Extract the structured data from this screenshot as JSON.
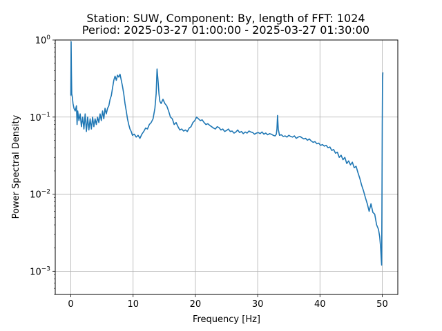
{
  "chart_data": {
    "type": "line",
    "title": "Station: SUW, Component: By, length of FFT: 1024",
    "subtitle": "Period: 2025-03-27 01:00:00 - 2025-03-27 01:30:00",
    "xlabel": "Frequency [Hz]",
    "ylabel": "Power Spectral Density",
    "xlim": [
      -2.5,
      52.5
    ],
    "ylim": [
      0.0005,
      1
    ],
    "yscale": "log",
    "grid": true,
    "line_color": "#1f77b4",
    "x_ticks": [
      {
        "value": 0,
        "label": "0"
      },
      {
        "value": 10,
        "label": "10"
      },
      {
        "value": 20,
        "label": "20"
      },
      {
        "value": 30,
        "label": "30"
      },
      {
        "value": 40,
        "label": "40"
      },
      {
        "value": 50,
        "label": "50"
      }
    ],
    "y_ticks": [
      {
        "value": 0.001,
        "base": "10",
        "exp": "−3"
      },
      {
        "value": 0.01,
        "base": "10",
        "exp": "−2"
      },
      {
        "value": 0.1,
        "base": "10",
        "exp": "−1"
      },
      {
        "value": 1,
        "base": "10",
        "exp": "0"
      }
    ],
    "series": [
      {
        "x": [
          0.0,
          0.05,
          0.1,
          0.15,
          0.25,
          0.35,
          0.5,
          0.7,
          0.9,
          1.0,
          1.1,
          1.3,
          1.5,
          1.7,
          1.9,
          2.1,
          2.3,
          2.5,
          2.7,
          2.9,
          3.1,
          3.3,
          3.5,
          3.7,
          3.9,
          4.1,
          4.3,
          4.5,
          4.7,
          4.9,
          5.1,
          5.3,
          5.5,
          5.7,
          5.9,
          6.1,
          6.3,
          6.5,
          6.7,
          6.9,
          7.1,
          7.3,
          7.5,
          7.7,
          7.9,
          8.1,
          8.3,
          8.5,
          8.7,
          8.9,
          9.1,
          9.3,
          9.5,
          9.7,
          9.9,
          10.2,
          10.5,
          10.8,
          11.1,
          11.4,
          11.7,
          12.0,
          12.3,
          12.6,
          12.9,
          13.2,
          13.5,
          13.7,
          13.85,
          14.0,
          14.15,
          14.3,
          14.5,
          14.8,
          15.1,
          15.4,
          15.7,
          16.0,
          16.3,
          16.6,
          16.9,
          17.2,
          17.5,
          17.8,
          18.1,
          18.4,
          18.7,
          19.0,
          19.3,
          19.6,
          19.9,
          20.2,
          20.5,
          20.8,
          21.1,
          21.4,
          21.7,
          22.0,
          22.3,
          22.6,
          22.9,
          23.2,
          23.5,
          23.8,
          24.1,
          24.4,
          24.7,
          25.0,
          25.3,
          25.6,
          25.9,
          26.2,
          26.5,
          26.8,
          27.1,
          27.4,
          27.7,
          28.0,
          28.3,
          28.6,
          28.9,
          29.2,
          29.5,
          29.8,
          30.1,
          30.4,
          30.7,
          31.0,
          31.3,
          31.6,
          31.9,
          32.2,
          32.5,
          32.8,
          33.0,
          33.1,
          33.2,
          33.3,
          33.5,
          33.8,
          34.1,
          34.4,
          34.7,
          35.0,
          35.3,
          35.6,
          35.9,
          36.2,
          36.5,
          36.8,
          37.1,
          37.4,
          37.7,
          38.0,
          38.3,
          38.6,
          38.9,
          39.2,
          39.5,
          39.8,
          40.1,
          40.4,
          40.7,
          41.0,
          41.3,
          41.6,
          41.9,
          42.2,
          42.5,
          42.8,
          43.1,
          43.4,
          43.7,
          44.0,
          44.3,
          44.6,
          44.9,
          45.2,
          45.5,
          45.8,
          46.1,
          46.4,
          46.7,
          47.0,
          47.3,
          47.6,
          47.9,
          48.2,
          48.5,
          48.8,
          49.1,
          49.4,
          49.6,
          49.75,
          49.85,
          49.9,
          49.95,
          50.0,
          50.05,
          50.1
        ],
        "y": [
          0.19,
          0.95,
          0.4,
          0.2,
          0.18,
          0.15,
          0.13,
          0.12,
          0.14,
          0.08,
          0.12,
          0.09,
          0.11,
          0.075,
          0.1,
          0.07,
          0.11,
          0.065,
          0.1,
          0.068,
          0.095,
          0.07,
          0.1,
          0.075,
          0.095,
          0.08,
          0.1,
          0.085,
          0.11,
          0.09,
          0.12,
          0.095,
          0.13,
          0.11,
          0.13,
          0.14,
          0.17,
          0.19,
          0.24,
          0.3,
          0.34,
          0.3,
          0.35,
          0.33,
          0.36,
          0.3,
          0.25,
          0.2,
          0.15,
          0.12,
          0.095,
          0.08,
          0.07,
          0.065,
          0.058,
          0.06,
          0.055,
          0.058,
          0.053,
          0.06,
          0.065,
          0.072,
          0.07,
          0.08,
          0.085,
          0.095,
          0.13,
          0.2,
          0.42,
          0.3,
          0.2,
          0.16,
          0.15,
          0.17,
          0.15,
          0.14,
          0.12,
          0.1,
          0.095,
          0.08,
          0.085,
          0.075,
          0.068,
          0.07,
          0.066,
          0.068,
          0.065,
          0.072,
          0.075,
          0.085,
          0.09,
          0.1,
          0.095,
          0.09,
          0.092,
          0.085,
          0.08,
          0.082,
          0.078,
          0.075,
          0.072,
          0.07,
          0.075,
          0.073,
          0.068,
          0.07,
          0.065,
          0.067,
          0.07,
          0.065,
          0.066,
          0.062,
          0.064,
          0.068,
          0.063,
          0.065,
          0.061,
          0.064,
          0.062,
          0.066,
          0.064,
          0.063,
          0.06,
          0.062,
          0.063,
          0.061,
          0.064,
          0.06,
          0.062,
          0.059,
          0.061,
          0.06,
          0.058,
          0.057,
          0.06,
          0.07,
          0.105,
          0.07,
          0.058,
          0.059,
          0.056,
          0.057,
          0.055,
          0.058,
          0.056,
          0.055,
          0.057,
          0.053,
          0.055,
          0.056,
          0.054,
          0.052,
          0.053,
          0.05,
          0.052,
          0.049,
          0.047,
          0.048,
          0.045,
          0.046,
          0.043,
          0.044,
          0.042,
          0.043,
          0.04,
          0.041,
          0.037,
          0.038,
          0.034,
          0.035,
          0.03,
          0.032,
          0.028,
          0.03,
          0.025,
          0.027,
          0.024,
          0.026,
          0.022,
          0.023,
          0.019,
          0.016,
          0.013,
          0.011,
          0.009,
          0.0075,
          0.006,
          0.0075,
          0.0058,
          0.0055,
          0.004,
          0.0035,
          0.0028,
          0.002,
          0.0014,
          0.0012,
          0.006,
          0.08,
          0.3,
          0.38
        ]
      }
    ]
  }
}
